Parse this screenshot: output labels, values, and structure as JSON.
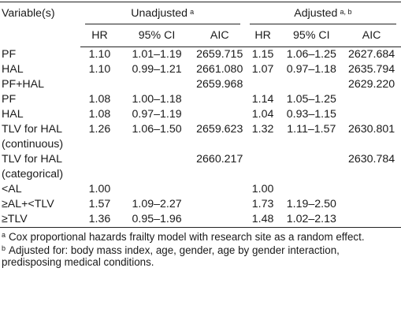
{
  "header": {
    "variable": "Variable(s)",
    "unadjusted": "Unadjusted",
    "unadjusted_sup": "a",
    "adjusted": "Adjusted",
    "adjusted_sup": "a, b",
    "hr": "HR",
    "ci": "95% CI",
    "aic": "AIC"
  },
  "rows": [
    {
      "var": "PF",
      "uhr": "1.10",
      "uci": "1.01–1.19",
      "uaic": "2659.715",
      "ahr": "1.15",
      "aci": "1.06–1.25",
      "aaic": "2627.684"
    },
    {
      "var": "HAL",
      "uhr": "1.10",
      "uci": "0.99–1.21",
      "uaic": "2661.080",
      "ahr": "1.07",
      "aci": "0.97–1.18",
      "aaic": "2635.794"
    },
    {
      "var": "PF+HAL",
      "uhr": "",
      "uci": "",
      "uaic": "2659.968",
      "ahr": "",
      "aci": "",
      "aaic": "2629.220"
    },
    {
      "var": "PF",
      "uhr": "1.08",
      "uci": "1.00–1.18",
      "uaic": "",
      "ahr": "1.14",
      "aci": "1.05–1.25",
      "aaic": ""
    },
    {
      "var": "HAL",
      "uhr": "1.08",
      "uci": "0.97–1.19",
      "uaic": "",
      "ahr": "1.04",
      "aci": "0.93–1.15",
      "aaic": ""
    },
    {
      "var": "TLV for HAL",
      "uhr": "1.26",
      "uci": "1.06–1.50",
      "uaic": "2659.623",
      "ahr": "1.32",
      "aci": "1.11–1.57",
      "aaic": "2630.801"
    },
    {
      "var": "(continuous)",
      "uhr": "",
      "uci": "",
      "uaic": "",
      "ahr": "",
      "aci": "",
      "aaic": ""
    },
    {
      "var": "TLV for HAL",
      "uhr": "",
      "uci": "",
      "uaic": "2660.217",
      "ahr": "",
      "aci": "",
      "aaic": "2630.784"
    },
    {
      "var": "(categorical)",
      "uhr": "",
      "uci": "",
      "uaic": "",
      "ahr": "",
      "aci": "",
      "aaic": ""
    },
    {
      "var": "<AL",
      "uhr": "1.00",
      "uci": "",
      "uaic": "",
      "ahr": "1.00",
      "aci": "",
      "aaic": ""
    },
    {
      "var": "≥AL+<TLV",
      "uhr": "1.57",
      "uci": "1.09–2.27",
      "uaic": "",
      "ahr": "1.73",
      "aci": "1.19–2.50",
      "aaic": ""
    },
    {
      "var": "≥TLV",
      "uhr": "1.36",
      "uci": "0.95–1.96",
      "uaic": "",
      "ahr": "1.48",
      "aci": "1.02–2.13",
      "aaic": ""
    }
  ],
  "notes": [
    {
      "mark": "a",
      "text": "Cox proportional hazards frailty model with research site as a random effect."
    },
    {
      "mark": "b",
      "text": "Adjusted for: body mass index, age, gender, age by gender interaction, predisposing medical conditions."
    }
  ]
}
